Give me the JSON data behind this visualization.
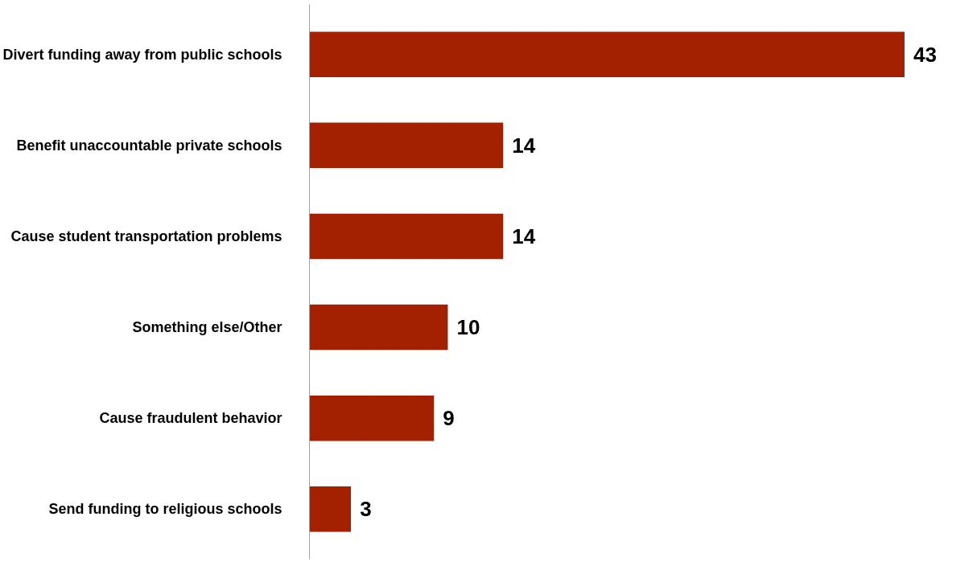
{
  "chart_data": {
    "type": "bar",
    "orientation": "horizontal",
    "categories": [
      "Divert funding away from public schools",
      "Benefit unaccountable private schools",
      "Cause student transportation problems",
      "Something else/Other",
      "Cause fraudulent behavior",
      "Send funding to religious schools"
    ],
    "values": [
      43,
      14,
      14,
      10,
      9,
      3
    ],
    "color": "#a32000",
    "data_labels": true,
    "grid": false
  }
}
